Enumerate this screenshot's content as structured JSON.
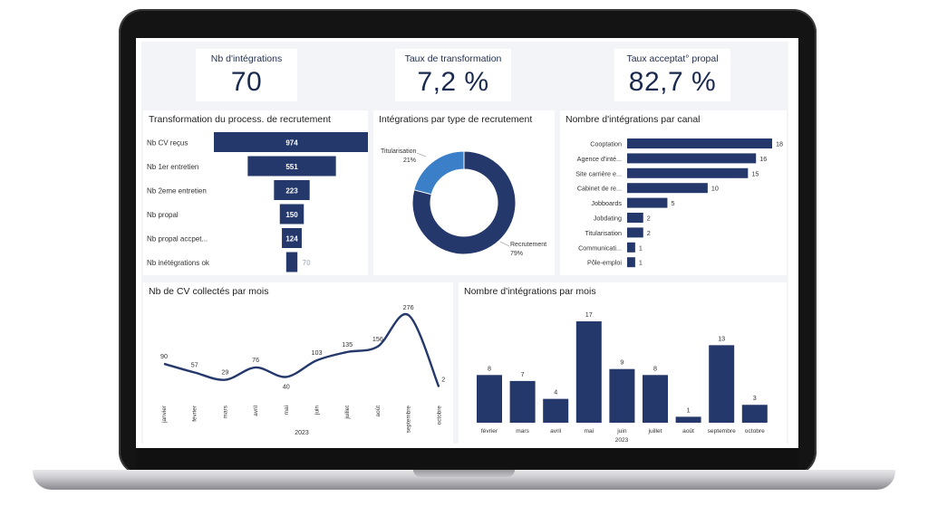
{
  "kpis": [
    {
      "title": "Nb d'intégrations",
      "value": "70"
    },
    {
      "title": "Taux de transformation",
      "value": "7,2 %"
    },
    {
      "title": "Taux acceptat° propal",
      "value": "82,7 %"
    }
  ],
  "colors": {
    "navy": "#24386b",
    "blue": "#3a7fc8",
    "text": "#333333"
  },
  "chart_data": [
    {
      "type": "bar",
      "title": "Transformation du process. de recrutement",
      "orientation": "funnel",
      "categories": [
        "Nb CV reçus",
        "Nb 1er entretien",
        "Nb 2eme entretien",
        "Nb propal",
        "Nb propal accpet...",
        "Nb inétégrations ok"
      ],
      "values": [
        974,
        551,
        223,
        150,
        124,
        70
      ],
      "labels": [
        "974",
        "551",
        "223",
        "150",
        "124",
        "70"
      ]
    },
    {
      "type": "pie",
      "title": "Intégrations par type de recrutement",
      "categories": [
        "Titularisation",
        "Recrutement"
      ],
      "values": [
        21,
        79
      ],
      "labels": [
        "21%",
        "79%"
      ],
      "donut": true
    },
    {
      "type": "bar",
      "title": "Nombre d'intégrations par canal",
      "orientation": "horizontal",
      "categories": [
        "Cooptation",
        "Agence d'inté...",
        "Site carrière e...",
        "Cabinet de re...",
        "Jobboards",
        "Jobdating",
        "Titularisation",
        "Communicati...",
        "Pôle-emploi"
      ],
      "values": [
        18,
        16,
        15,
        10,
        5,
        2,
        2,
        1,
        1
      ]
    },
    {
      "type": "line",
      "title": "Nb de CV collectés par mois",
      "x": [
        "janvier",
        "février",
        "mars",
        "avril",
        "mai",
        "juin",
        "juillet",
        "août",
        "septembre",
        "octobre"
      ],
      "values": [
        90,
        57,
        29,
        76,
        40,
        103,
        135,
        156,
        276,
        2
      ],
      "xlabel": "2023"
    },
    {
      "type": "bar",
      "title": "Nombre d'intégrations par mois",
      "categories": [
        "février",
        "mars",
        "avril",
        "mai",
        "juin",
        "juillet",
        "août",
        "septembre",
        "octobre"
      ],
      "values": [
        8,
        7,
        4,
        17,
        9,
        8,
        1,
        13,
        3
      ],
      "xlabel": "2023"
    }
  ]
}
